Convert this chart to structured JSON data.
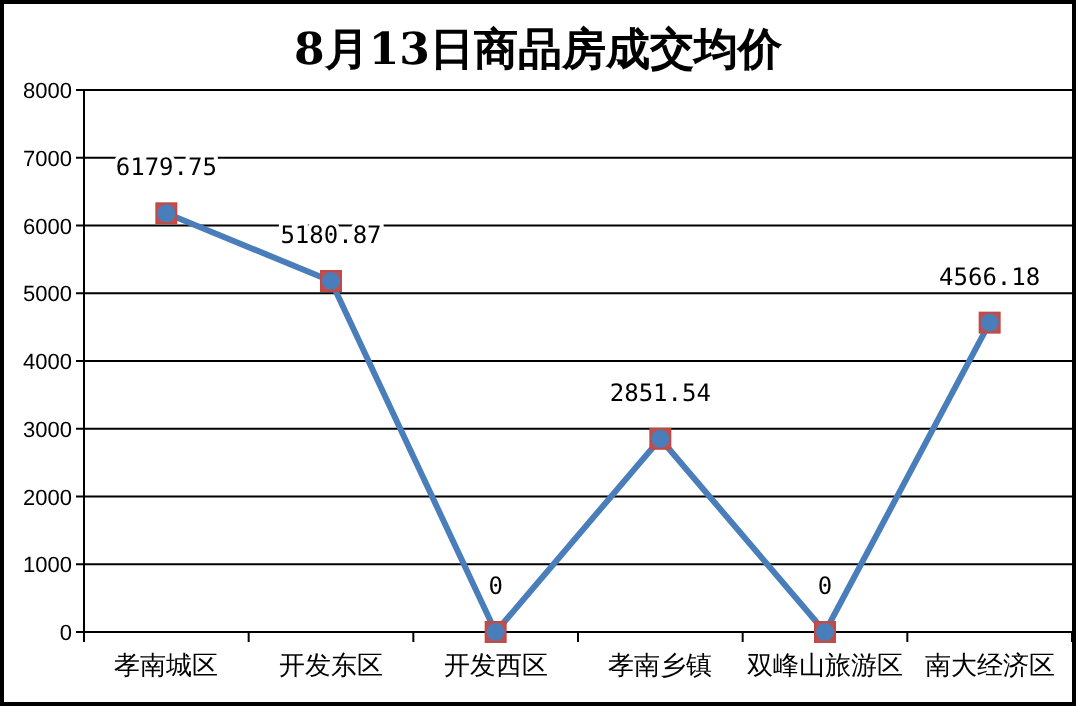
{
  "chart_data": {
    "type": "line",
    "title": "8月13日商品房成交均价",
    "categories": [
      "孝南城区",
      "开发东区",
      "开发西区",
      "孝南乡镇",
      "双峰山旅游区",
      "南大经济区"
    ],
    "series": [
      {
        "color": "#4a7ebb",
        "values": [
          6179.75,
          5180.87,
          0,
          2851.54,
          0,
          4566.18
        ]
      }
    ],
    "ylim": [
      0,
      8000
    ],
    "yticks": [
      0,
      1000,
      2000,
      3000,
      4000,
      5000,
      6000,
      7000,
      8000
    ],
    "grid": "y",
    "marker": "circle",
    "data_labels": true
  }
}
